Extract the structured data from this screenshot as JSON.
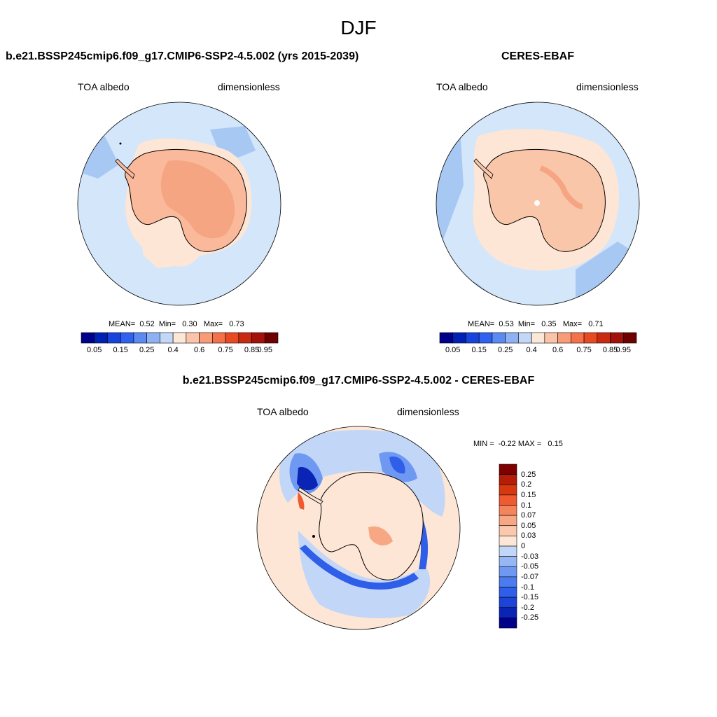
{
  "main_title": "DJF",
  "panels": [
    {
      "title": "b.e21.BSSP245cmip6.f09_g17.CMIP6-SSP2-4.5.002 (yrs 2015-2039)",
      "variable": "TOA albedo",
      "units": "dimensionless",
      "stats": {
        "mean_label": "MEAN=",
        "mean": "0.52",
        "min_label": "Min=",
        "min": "0.30",
        "max_label": "Max=",
        "max": "0.73"
      }
    },
    {
      "title": "CERES-EBAF",
      "variable": "TOA albedo",
      "units": "dimensionless",
      "stats": {
        "mean_label": "MEAN=",
        "mean": "0.53",
        "min_label": "Min=",
        "min": "0.35",
        "max_label": "Max=",
        "max": "0.71"
      }
    },
    {
      "title": "b.e21.BSSP245cmip6.f09_g17.CMIP6-SSP2-4.5.002 - CERES-EBAF",
      "variable": "TOA albedo",
      "units": "dimensionless",
      "stats": {
        "min_label": "MIN =",
        "min": "-0.22",
        "max_label": "MAX =",
        "max": "0.15"
      }
    }
  ],
  "abs_colorbar": {
    "colors": [
      "#00008b",
      "#0022b4",
      "#1744dc",
      "#2f62f0",
      "#5a8af2",
      "#8fb0f2",
      "#c2d8f8",
      "#fde8d8",
      "#fbc3a8",
      "#f89c78",
      "#f5714a",
      "#e84a22",
      "#c92a10",
      "#a31208",
      "#6e0000"
    ],
    "labels": [
      "0.05",
      "0.15",
      "0.25",
      "0.4",
      "0.6",
      "0.75",
      "0.85",
      "0.95"
    ]
  },
  "diff_colorbar": {
    "colors": [
      "#00008b",
      "#0a24b6",
      "#1c44d8",
      "#2f5ee8",
      "#4a7cf0",
      "#6e98f2",
      "#96b6f4",
      "#c2d6f8",
      "#fde6d6",
      "#fbc8ae",
      "#f8a784",
      "#f6845a",
      "#ef5a30",
      "#d8380f",
      "#b51d06",
      "#7e0000"
    ],
    "labels": [
      "0.25",
      "0.2",
      "0.15",
      "0.1",
      "0.07",
      "0.05",
      "0.03",
      "0",
      "-0.03",
      "-0.05",
      "-0.07",
      "-0.1",
      "-0.15",
      "-0.2",
      "-0.25"
    ]
  },
  "map_colors": {
    "ocean": "#d4e6fa",
    "ocean_mid": "#a8c8f4",
    "ice_light": "#fde6d6",
    "land": "#f9b99a",
    "land_high": "#f6a583",
    "diff_base": "#fde6d6",
    "diff_neg1": "#c2d6f8",
    "diff_neg2": "#6e98f2",
    "diff_neg3": "#2f5ee8",
    "diff_neg4": "#0a24b6",
    "diff_pos1": "#f8a784",
    "diff_pos2": "#ef5a30"
  }
}
